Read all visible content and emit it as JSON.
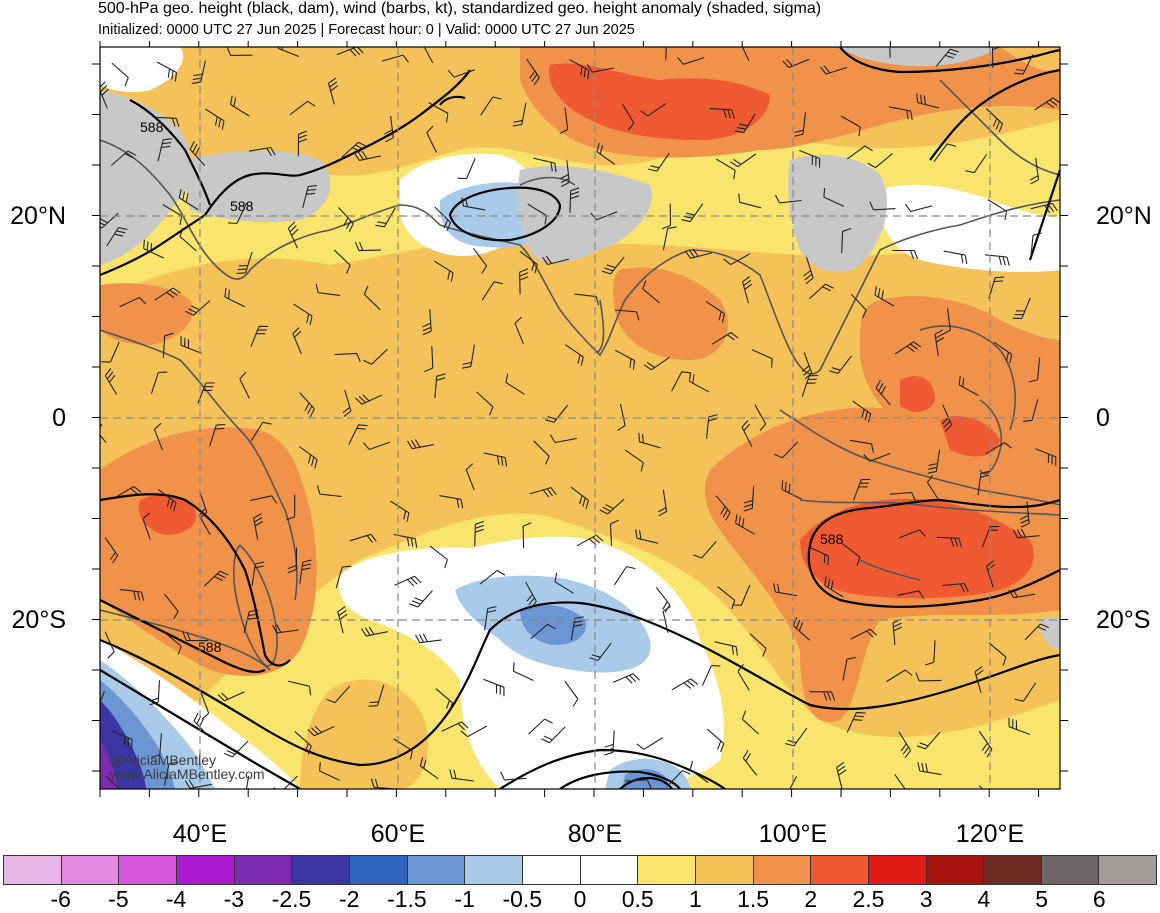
{
  "header": {
    "title": "500-hPa geo. height (black, dam), wind (barbs, kt), standardized geo. height anomaly (shaded, sigma)",
    "subtitle": "Initialized: 0000 UTC 27 Jun 2025 | Forecast hour: 0 | Valid: 0000 UTC 27 Jun 2025"
  },
  "map": {
    "lat_labels": [
      "20°N",
      "0",
      "20°S"
    ],
    "lon_labels": [
      "40°E",
      "60°E",
      "80°E",
      "100°E",
      "120°E"
    ],
    "contour_labels": [
      "588",
      "588",
      "588",
      "588"
    ],
    "credit": {
      "handle": "@AliciaMBentley",
      "site": "www.AliciaMBentley.com"
    }
  },
  "colorbar": {
    "ticks": [
      "-6",
      "-5",
      "-4",
      "-3",
      "-2.5",
      "-2",
      "-1.5",
      "-1",
      "-0.5",
      "0",
      "0.5",
      "1",
      "1.5",
      "2",
      "2.5",
      "3",
      "4",
      "5",
      "6"
    ],
    "colors": [
      "#e9b7e5",
      "#e48ae2",
      "#d656dd",
      "#ad1bd1",
      "#7d2bb1",
      "#3a37a4",
      "#2f65bf",
      "#6c95d4",
      "#a9cbe9",
      "#ffffff",
      "#ffffff",
      "#f9e46d",
      "#f4c259",
      "#f1924a",
      "#f05a32",
      "#e11a16",
      "#a7140d",
      "#6b2a22",
      "#6e6664",
      "#a39b98"
    ]
  },
  "colors": {
    "land_gray": "#c8c8c8",
    "coast": "#555555",
    "contour": "#000000",
    "grid": "#888888"
  }
}
